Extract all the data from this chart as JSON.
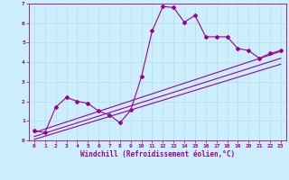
{
  "xlabel": "Windchill (Refroidissement éolien,°C)",
  "bg_color": "#cceeff",
  "line_color": "#990099",
  "grid_color": "#aadddd",
  "xlim": [
    -0.5,
    23.5
  ],
  "ylim": [
    0,
    7
  ],
  "xticks": [
    0,
    1,
    2,
    3,
    4,
    5,
    6,
    7,
    8,
    9,
    10,
    11,
    12,
    13,
    14,
    15,
    16,
    17,
    18,
    19,
    20,
    21,
    22,
    23
  ],
  "yticks": [
    0,
    1,
    2,
    3,
    4,
    5,
    6,
    7
  ],
  "line1_x": [
    0,
    1,
    2,
    3,
    4,
    5,
    6,
    7,
    8,
    9,
    10,
    11,
    12,
    13,
    14,
    15,
    16,
    17,
    18,
    19,
    20,
    21,
    22,
    23
  ],
  "line1_y": [
    0.5,
    0.4,
    1.7,
    2.2,
    2.0,
    1.9,
    1.5,
    1.3,
    0.9,
    1.55,
    3.25,
    5.6,
    6.85,
    6.8,
    6.05,
    6.4,
    5.3,
    5.3,
    5.3,
    4.7,
    4.6,
    4.2,
    4.45,
    4.6
  ],
  "line2_x": [
    0,
    23
  ],
  "line2_y": [
    0.2,
    4.2
  ],
  "line3_x": [
    0,
    23
  ],
  "line3_y": [
    0.4,
    4.55
  ],
  "line4_x": [
    0,
    23
  ],
  "line4_y": [
    0.05,
    3.9
  ]
}
